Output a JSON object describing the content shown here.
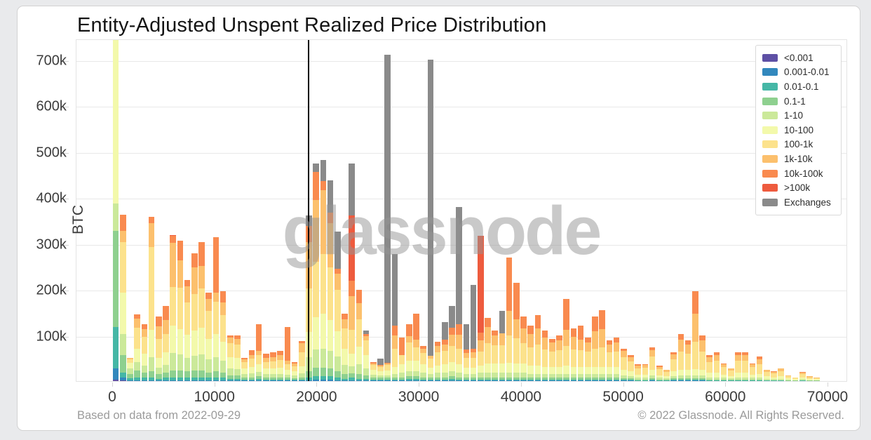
{
  "header": {
    "title": "Entity-Adjusted Unspent Realized Price Distribution"
  },
  "watermark": "glassnode",
  "footer": {
    "left": "Based on data from 2022-09-29",
    "right": "© 2022 Glassnode. All Rights Reserved."
  },
  "chart_data": {
    "type": "bar",
    "stacked": true,
    "title": "Entity-Adjusted Unspent Realized Price Distribution",
    "xlabel": "",
    "ylabel": "BTC",
    "xlim": [
      0,
      70000
    ],
    "ylim": [
      0,
      745000
    ],
    "grid": "horizontal",
    "legend_position": "top-right",
    "bin_width": 700,
    "values_unit": "thousand BTC",
    "price_line_x": 19200,
    "x_ticks": [
      {
        "label": "0",
        "value": 0
      },
      {
        "label": "10000",
        "value": 10000
      },
      {
        "label": "20000",
        "value": 20000
      },
      {
        "label": "30000",
        "value": 30000
      },
      {
        "label": "40000",
        "value": 40000
      },
      {
        "label": "50000",
        "value": 50000
      },
      {
        "label": "60000",
        "value": 60000
      },
      {
        "label": "70000",
        "value": 70000
      }
    ],
    "y_ticks": [
      {
        "label": "100k",
        "value": 100
      },
      {
        "label": "200k",
        "value": 200
      },
      {
        "label": "300k",
        "value": 300
      },
      {
        "label": "400k",
        "value": 400
      },
      {
        "label": "500k",
        "value": 500
      },
      {
        "label": "600k",
        "value": 600
      },
      {
        "label": "700k",
        "value": 700
      }
    ],
    "series": [
      {
        "name": "<0.001",
        "color": "#5e50a5"
      },
      {
        "name": "0.001-0.01",
        "color": "#3288bd"
      },
      {
        "name": "0.01-0.1",
        "color": "#45b7a6"
      },
      {
        "name": "0.1-1",
        "color": "#8ed08f"
      },
      {
        "name": "1-10",
        "color": "#cbe99a"
      },
      {
        "name": "10-100",
        "color": "#f3f9ab"
      },
      {
        "name": "100-1k",
        "color": "#fce28c"
      },
      {
        "name": "1k-10k",
        "color": "#fcc06d"
      },
      {
        "name": "10k-100k",
        "color": "#f98a4f"
      },
      {
        "name": ">100k",
        "color": "#ee5b3e"
      },
      {
        "name": "Exchanges",
        "color": "#8a8a8a"
      }
    ],
    "bars_format": "[bin_start_usd, <0.001, 0.001-0.01, 0.01-0.1, 0.1-1, 1-10, 10-100, 100-1k, 1k-10k, 10k-100k, >100k, Exchanges] values in thousand BTC",
    "bars": [
      [
        0,
        3,
        24,
        90,
        210,
        60,
        380,
        35,
        0,
        0,
        0,
        0
      ],
      [
        700,
        1,
        6,
        12,
        38,
        45,
        90,
        110,
        25,
        35,
        0,
        0
      ],
      [
        1400,
        0,
        2,
        4,
        10,
        12,
        12,
        8,
        2,
        0,
        0,
        0
      ],
      [
        2100,
        0,
        2,
        6,
        15,
        18,
        30,
        45,
        20,
        9,
        0,
        0
      ],
      [
        2800,
        0,
        2,
        5,
        12,
        15,
        25,
        38,
        16,
        10,
        0,
        0
      ],
      [
        3500,
        0,
        2,
        6,
        14,
        30,
        60,
        180,
        51,
        15,
        0,
        0
      ],
      [
        4200,
        0,
        1,
        4,
        10,
        14,
        22,
        40,
        28,
        21,
        0,
        0
      ],
      [
        4900,
        0,
        2,
        5,
        12,
        16,
        28,
        40,
        30,
        30,
        0,
        0
      ],
      [
        5600,
        0,
        2,
        6,
        15,
        38,
        60,
        84,
        96,
        15,
        2,
        0
      ],
      [
        6300,
        0,
        2,
        6,
        15,
        35,
        55,
        90,
        60,
        42,
        0,
        0
      ],
      [
        7000,
        0,
        2,
        5,
        14,
        30,
        50,
        70,
        35,
        14,
        0,
        0
      ],
      [
        7700,
        0,
        2,
        6,
        15,
        32,
        55,
        80,
        58,
        30,
        0,
        0
      ],
      [
        8400,
        0,
        2,
        6,
        15,
        35,
        58,
        85,
        49,
        52,
        0,
        0
      ],
      [
        9100,
        0,
        2,
        5,
        12,
        28,
        45,
        60,
        27,
        14,
        0,
        0
      ],
      [
        9800,
        0,
        2,
        6,
        14,
        30,
        50,
        70,
        21,
        120,
        0,
        0
      ],
      [
        10500,
        0,
        2,
        5,
        12,
        25,
        42,
        57,
        28,
        25,
        0,
        0
      ],
      [
        11200,
        0,
        1,
        3,
        8,
        15,
        25,
        30,
        12,
        6,
        0,
        0
      ],
      [
        11900,
        0,
        1,
        3,
        8,
        14,
        24,
        30,
        12,
        7,
        0,
        0
      ],
      [
        12600,
        0,
        1,
        2,
        5,
        8,
        12,
        14,
        5,
        3,
        0,
        0
      ],
      [
        13300,
        0,
        1,
        2,
        5,
        9,
        14,
        18,
        8,
        11,
        0,
        0
      ],
      [
        14000,
        0,
        1,
        3,
        6,
        10,
        16,
        20,
        9,
        58,
        0,
        0
      ],
      [
        14700,
        0,
        1,
        2,
        4,
        8,
        12,
        15,
        8,
        10,
        0,
        0
      ],
      [
        15400,
        0,
        1,
        2,
        4,
        8,
        12,
        16,
        9,
        11,
        0,
        0
      ],
      [
        16100,
        0,
        1,
        2,
        5,
        8,
        13,
        17,
        10,
        9,
        0,
        0
      ],
      [
        16800,
        0,
        1,
        2,
        4,
        7,
        10,
        13,
        7,
        73,
        0,
        0
      ],
      [
        17500,
        0,
        1,
        2,
        3,
        6,
        9,
        11,
        6,
        3,
        0,
        0
      ],
      [
        18200,
        0,
        1,
        2,
        5,
        9,
        15,
        30,
        20,
        5,
        0,
        0
      ],
      [
        18900,
        0,
        2,
        6,
        14,
        30,
        55,
        95,
        100,
        35,
        0,
        23
      ],
      [
        19600,
        0,
        3,
        8,
        18,
        40,
        70,
        120,
        135,
        61,
        0,
        18
      ],
      [
        20300,
        0,
        3,
        8,
        18,
        42,
        75,
        130,
        140,
        19,
        0,
        46
      ],
      [
        21000,
        0,
        3,
        8,
        16,
        38,
        68,
        115,
        95,
        24,
        0,
        70
      ],
      [
        21700,
        0,
        2,
        6,
        14,
        32,
        55,
        90,
        35,
        11,
        0,
        81
      ],
      [
        22400,
        0,
        1,
        4,
        10,
        20,
        35,
        45,
        20,
        11,
        0,
        0
      ],
      [
        23100,
        0,
        2,
        5,
        10,
        15,
        27,
        53,
        73,
        34,
        142,
        113
      ],
      [
        23800,
        0,
        1,
        4,
        10,
        22,
        38,
        60,
        34,
        30,
        0,
        0
      ],
      [
        24500,
        0,
        1,
        3,
        8,
        16,
        28,
        32,
        10,
        5,
        0,
        7
      ],
      [
        25200,
        0,
        1,
        2,
        4,
        7,
        10,
        11,
        4,
        2,
        0,
        0
      ],
      [
        25900,
        0,
        1,
        2,
        4,
        6,
        9,
        9,
        3,
        1,
        0,
        14
      ],
      [
        26600,
        0,
        1,
        2,
        4,
        6,
        10,
        12,
        3,
        1,
        0,
        671
      ],
      [
        27300,
        0,
        1,
        2,
        5,
        8,
        14,
        40,
        30,
        20,
        0,
        156
      ],
      [
        28000,
        0,
        1,
        2,
        5,
        10,
        18,
        20,
        0,
        38,
        0,
        0
      ],
      [
        28700,
        0,
        1,
        3,
        6,
        12,
        22,
        40,
        14,
        25,
        0,
        0
      ],
      [
        29400,
        0,
        1,
        3,
        6,
        12,
        22,
        30,
        16,
        56,
        0,
        0
      ],
      [
        30100,
        0,
        1,
        2,
        5,
        10,
        18,
        25,
        10,
        6,
        0,
        0
      ],
      [
        30800,
        0,
        1,
        2,
        4,
        8,
        14,
        20,
        6,
        0,
        0,
        645
      ],
      [
        31500,
        0,
        1,
        2,
        5,
        10,
        16,
        28,
        14,
        10,
        0,
        0
      ],
      [
        32200,
        0,
        1,
        2,
        5,
        10,
        18,
        30,
        14,
        10,
        0,
        38
      ],
      [
        32900,
        0,
        1,
        3,
        6,
        11,
        20,
        35,
        25,
        15,
        0,
        47
      ],
      [
        33600,
        0,
        1,
        2,
        5,
        10,
        18,
        35,
        30,
        23,
        0,
        254
      ],
      [
        34300,
        0,
        1,
        2,
        4,
        8,
        14,
        22,
        10,
        8,
        0,
        55
      ],
      [
        35000,
        0,
        1,
        2,
        4,
        8,
        14,
        22,
        12,
        7,
        0,
        139
      ],
      [
        35700,
        0,
        1,
        2,
        5,
        10,
        16,
        30,
        25,
        17,
        210,
        0
      ],
      [
        36400,
        0,
        1,
        2,
        5,
        10,
        20,
        45,
        35,
        20,
        0,
        0
      ],
      [
        37100,
        0,
        1,
        2,
        5,
        10,
        20,
        40,
        22,
        10,
        0,
        0
      ],
      [
        37800,
        0,
        1,
        2,
        5,
        10,
        20,
        40,
        26,
        0,
        0,
        49
      ],
      [
        38500,
        0,
        1,
        2,
        5,
        10,
        22,
        60,
        53,
        115,
        0,
        0
      ],
      [
        39200,
        0,
        1,
        2,
        5,
        10,
        20,
        55,
        42,
        79,
        0,
        0
      ],
      [
        39900,
        0,
        1,
        2,
        5,
        10,
        20,
        45,
        32,
        25,
        0,
        0
      ],
      [
        40600,
        0,
        1,
        2,
        4,
        9,
        18,
        40,
        28,
        18,
        0,
        0
      ],
      [
        41300,
        0,
        1,
        2,
        4,
        9,
        18,
        45,
        35,
        29,
        0,
        0
      ],
      [
        42000,
        0,
        1,
        2,
        4,
        8,
        16,
        38,
        26,
        15,
        0,
        0
      ],
      [
        42700,
        0,
        1,
        2,
        4,
        8,
        15,
        34,
        20,
        8,
        0,
        0
      ],
      [
        43400,
        0,
        1,
        2,
        4,
        8,
        16,
        36,
        22,
        11,
        0,
        0
      ],
      [
        44100,
        0,
        1,
        2,
        4,
        9,
        18,
        42,
        36,
        66,
        0,
        0
      ],
      [
        44800,
        0,
        1,
        2,
        4,
        8,
        16,
        38,
        28,
        18,
        0,
        0
      ],
      [
        45500,
        0,
        1,
        2,
        4,
        8,
        16,
        36,
        23,
        30,
        0,
        0
      ],
      [
        46200,
        0,
        1,
        2,
        4,
        8,
        15,
        34,
        20,
        10,
        0,
        0
      ],
      [
        46900,
        0,
        1,
        2,
        4,
        8,
        16,
        40,
        38,
        31,
        0,
        0
      ],
      [
        47600,
        0,
        1,
        2,
        4,
        8,
        16,
        42,
        40,
        42,
        0,
        0
      ],
      [
        48300,
        0,
        1,
        2,
        4,
        8,
        15,
        32,
        18,
        9,
        0,
        0
      ],
      [
        49000,
        0,
        1,
        2,
        4,
        8,
        15,
        34,
        20,
        10,
        0,
        0
      ],
      [
        49700,
        0,
        1,
        2,
        3,
        6,
        12,
        28,
        13,
        6,
        0,
        0
      ],
      [
        50400,
        0,
        1,
        2,
        3,
        5,
        10,
        22,
        9,
        4,
        0,
        0
      ],
      [
        51100,
        0,
        0,
        1,
        2,
        4,
        7,
        14,
        6,
        2,
        0,
        0
      ],
      [
        51800,
        0,
        0,
        1,
        2,
        4,
        7,
        15,
        6,
        2,
        0,
        0
      ],
      [
        52500,
        0,
        1,
        2,
        3,
        6,
        12,
        30,
        14,
        6,
        0,
        0
      ],
      [
        53200,
        0,
        0,
        1,
        2,
        4,
        6,
        13,
        5,
        2,
        0,
        0
      ],
      [
        53900,
        0,
        0,
        1,
        2,
        3,
        5,
        9,
        4,
        1,
        0,
        0
      ],
      [
        54600,
        0,
        1,
        2,
        3,
        5,
        10,
        26,
        11,
        5,
        0,
        0
      ],
      [
        55300,
        0,
        1,
        2,
        3,
        6,
        12,
        40,
        26,
        12,
        0,
        0
      ],
      [
        56000,
        0,
        1,
        2,
        3,
        6,
        12,
        36,
        20,
        9,
        0,
        0
      ],
      [
        56700,
        0,
        1,
        2,
        3,
        6,
        14,
        60,
        60,
        50,
        0,
        0
      ],
      [
        57400,
        0,
        1,
        2,
        3,
        6,
        12,
        40,
        24,
        12,
        0,
        0
      ],
      [
        58100,
        0,
        0,
        1,
        2,
        5,
        10,
        24,
        10,
        4,
        0,
        0
      ],
      [
        58800,
        0,
        0,
        1,
        2,
        5,
        10,
        26,
        13,
        6,
        0,
        0
      ],
      [
        59500,
        0,
        0,
        1,
        2,
        4,
        7,
        16,
        7,
        2,
        0,
        0
      ],
      [
        60200,
        0,
        0,
        1,
        2,
        3,
        5,
        12,
        4,
        1,
        0,
        0
      ],
      [
        60900,
        0,
        0,
        1,
        2,
        5,
        10,
        26,
        12,
        6,
        0,
        0
      ],
      [
        61600,
        0,
        0,
        1,
        2,
        5,
        10,
        26,
        12,
        6,
        0,
        0
      ],
      [
        62300,
        0,
        0,
        1,
        2,
        4,
        7,
        17,
        6,
        2,
        0,
        0
      ],
      [
        63000,
        0,
        0,
        1,
        2,
        4,
        8,
        22,
        11,
        6,
        0,
        0
      ],
      [
        63700,
        0,
        0,
        1,
        1,
        3,
        5,
        10,
        4,
        1,
        0,
        0
      ],
      [
        64400,
        0,
        0,
        1,
        1,
        2,
        4,
        9,
        3,
        1,
        0,
        0
      ],
      [
        65100,
        0,
        0,
        1,
        1,
        3,
        5,
        12,
        5,
        1,
        0,
        0
      ],
      [
        65800,
        0,
        0,
        0,
        1,
        2,
        3,
        5,
        2,
        0,
        0,
        0
      ],
      [
        66500,
        0,
        0,
        0,
        1,
        1,
        2,
        3,
        1,
        0,
        0,
        0
      ],
      [
        67200,
        0,
        0,
        1,
        1,
        2,
        4,
        8,
        3,
        1,
        0,
        0
      ],
      [
        67900,
        0,
        0,
        0,
        1,
        1,
        2,
        4,
        2,
        0,
        0,
        0
      ],
      [
        68600,
        0,
        0,
        0,
        1,
        1,
        2,
        2,
        1,
        0,
        0,
        0
      ]
    ]
  }
}
